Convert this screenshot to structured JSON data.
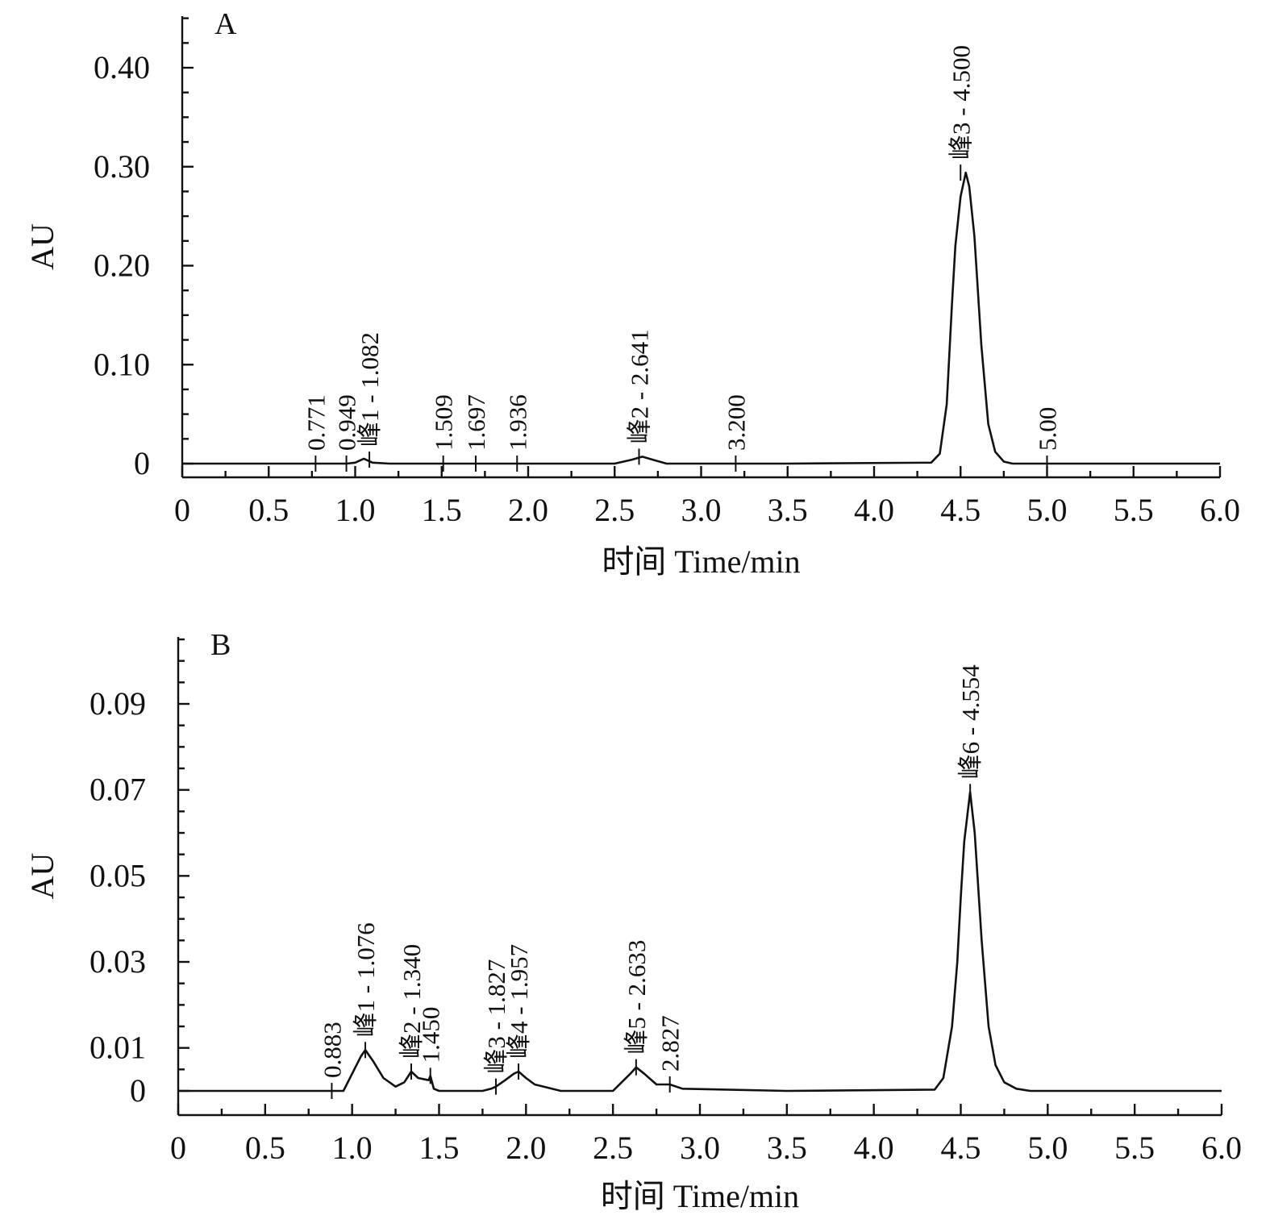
{
  "chart_data": [
    {
      "type": "line",
      "panel_label": "A",
      "xlabel": "时间 Time/min",
      "ylabel": "AU",
      "xlim": [
        0,
        6.0
      ],
      "ylim": [
        0,
        0.45
      ],
      "xticks": [
        0,
        0.5,
        1.0,
        1.5,
        2.0,
        2.5,
        3.0,
        3.5,
        4.0,
        4.5,
        5.0,
        5.5,
        6.0
      ],
      "xtick_labels": [
        "0",
        "0.5",
        "1.0",
        "1.5",
        "2.0",
        "2.5",
        "3.0",
        "3.5",
        "4.0",
        "4.5",
        "5.0",
        "5.5",
        "6.0"
      ],
      "yticks": [
        0,
        0.1,
        0.2,
        0.3,
        0.4
      ],
      "ytick_labels": [
        "0",
        "0.10",
        "0.20",
        "0.30",
        "0.40"
      ],
      "y_minor_step": 0.025,
      "x_minor_step": 0.25,
      "x": [
        0,
        0.75,
        0.95,
        1.0,
        1.05,
        1.1,
        1.2,
        2.0,
        2.5,
        2.6,
        2.66,
        2.72,
        2.8,
        3.5,
        4.33,
        4.38,
        4.42,
        4.45,
        4.47,
        4.5,
        4.53,
        4.55,
        4.58,
        4.62,
        4.66,
        4.7,
        4.75,
        4.8,
        6.0
      ],
      "y": [
        0,
        0,
        0,
        0.001,
        0.005,
        0.001,
        0,
        0,
        0,
        0.004,
        0.007,
        0.004,
        0,
        0,
        0.001,
        0.01,
        0.06,
        0.16,
        0.22,
        0.27,
        0.294,
        0.28,
        0.23,
        0.12,
        0.04,
        0.012,
        0.002,
        0,
        0
      ],
      "peaks": [
        {
          "label": "0.771",
          "x": 0.771,
          "y": 0
        },
        {
          "label": "0.949",
          "x": 0.949,
          "y": 0
        },
        {
          "label": "峰1 - 1.082",
          "x": 1.082,
          "y": 0.004
        },
        {
          "label": "1.509",
          "x": 1.509,
          "y": 0
        },
        {
          "label": "1.697",
          "x": 1.697,
          "y": 0
        },
        {
          "label": "1.936",
          "x": 1.936,
          "y": 0
        },
        {
          "label": "峰2 - 2.641",
          "x": 2.641,
          "y": 0.007
        },
        {
          "label": "3.200",
          "x": 3.2,
          "y": 0
        },
        {
          "label": "峰3 - 4.500",
          "x": 4.5,
          "y": 0.294
        },
        {
          "label": "5.00",
          "x": 5.0,
          "y": 0
        }
      ]
    },
    {
      "type": "line",
      "panel_label": "B",
      "xlabel": "时间 Time/min",
      "ylabel": "AU",
      "xlim": [
        0,
        6.0
      ],
      "ylim": [
        -0.0055,
        0.105
      ],
      "xticks": [
        0,
        0.5,
        1.0,
        1.5,
        2.0,
        2.5,
        3.0,
        3.5,
        4.0,
        4.5,
        5.0,
        5.5,
        6.0
      ],
      "xtick_labels": [
        "0",
        "0.5",
        "1.0",
        "1.5",
        "2.0",
        "2.5",
        "3.0",
        "3.5",
        "4.0",
        "4.5",
        "5.0",
        "5.5",
        "6.0"
      ],
      "yticks": [
        0,
        0.01,
        0.03,
        0.05,
        0.07,
        0.09
      ],
      "ytick_labels": [
        "0",
        "0.01",
        "0.03",
        "0.05",
        "0.07",
        "0.09"
      ],
      "y_minor_step": 0.005,
      "x_minor_step": 0.25,
      "x": [
        0,
        0.88,
        0.95,
        1.0,
        1.05,
        1.076,
        1.12,
        1.18,
        1.25,
        1.3,
        1.34,
        1.38,
        1.44,
        1.45,
        1.47,
        1.5,
        1.75,
        1.8,
        1.827,
        1.88,
        1.93,
        1.957,
        2.0,
        2.05,
        2.2,
        2.5,
        2.6,
        2.633,
        2.68,
        2.75,
        2.827,
        2.9,
        3.5,
        4.35,
        4.4,
        4.45,
        4.48,
        4.5,
        4.52,
        4.554,
        4.58,
        4.62,
        4.66,
        4.7,
        4.75,
        4.82,
        4.9,
        6.0
      ],
      "y": [
        0,
        0,
        0,
        0.004,
        0.008,
        0.0095,
        0.007,
        0.003,
        0.001,
        0.002,
        0.0045,
        0.003,
        0.0025,
        0.0035,
        0.0005,
        0,
        0,
        0.0005,
        0.001,
        0.0025,
        0.004,
        0.0045,
        0.003,
        0.0015,
        0,
        0,
        0.004,
        0.0055,
        0.004,
        0.0015,
        0.0015,
        0.0005,
        0,
        0.0003,
        0.003,
        0.015,
        0.03,
        0.045,
        0.058,
        0.0695,
        0.06,
        0.035,
        0.015,
        0.006,
        0.002,
        0.0005,
        0,
        0
      ],
      "peaks": [
        {
          "label": "0.883",
          "x": 0.883,
          "y": 0
        },
        {
          "label": "峰1 - 1.076",
          "x": 1.076,
          "y": 0.0095
        },
        {
          "label": "峰2 - 1.340",
          "x": 1.34,
          "y": 0.0045
        },
        {
          "label": "1.450",
          "x": 1.45,
          "y": 0.0035
        },
        {
          "label": "峰3 - 1.827",
          "x": 1.827,
          "y": 0.001
        },
        {
          "label": "峰4 - 1.957",
          "x": 1.957,
          "y": 0.0045
        },
        {
          "label": "峰5 - 2.633",
          "x": 2.633,
          "y": 0.0055
        },
        {
          "label": "2.827",
          "x": 2.827,
          "y": 0.0015
        },
        {
          "label": "峰6 - 4.554",
          "x": 4.554,
          "y": 0.0695
        }
      ]
    }
  ]
}
